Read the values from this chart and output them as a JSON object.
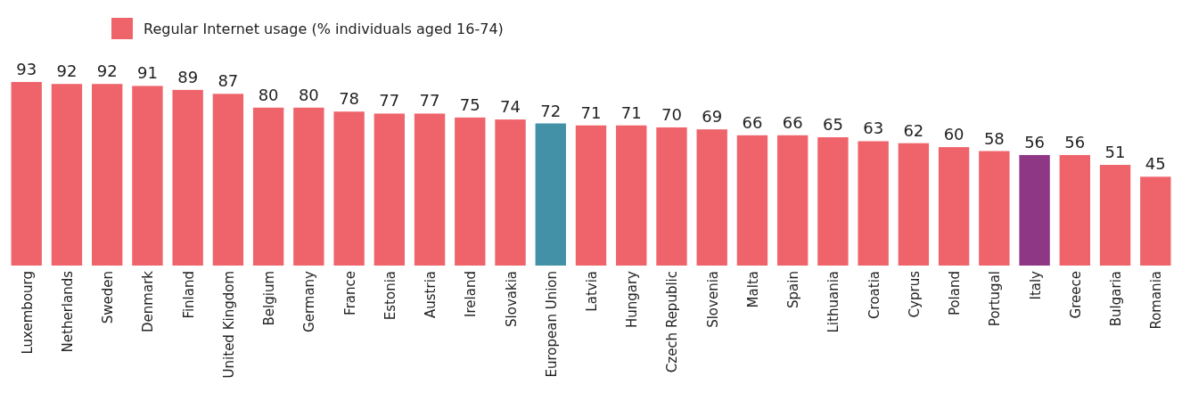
{
  "chart_data": {
    "type": "bar",
    "legend": "top left",
    "data_labels": true,
    "categories": [
      "Luxembourg",
      "Netherlands",
      "Sweden",
      "Denmark",
      "Finland",
      "United Kingdom",
      "Belgium",
      "Germany",
      "France",
      "Estonia",
      "Austria",
      "Ireland",
      "Slovakia",
      "European Union",
      "Latvia",
      "Hungary",
      "Czech Republic",
      "Slovenia",
      "Malta",
      "Spain",
      "Lithuania",
      "Croatia",
      "Cyprus",
      "Poland",
      "Portugal",
      "Italy",
      "Greece",
      "Bulgaria",
      "Romania"
    ],
    "series": [
      {
        "name": "Regular Internet usage (% individuals aged 16-74)",
        "color": "#ef646b",
        "values": [
          93,
          92,
          92,
          91,
          89,
          87,
          80,
          80,
          78,
          77,
          77,
          75,
          74,
          72,
          71,
          71,
          70,
          69,
          66,
          66,
          65,
          63,
          62,
          60,
          58,
          56,
          56,
          51,
          45
        ],
        "colors": [
          "#ef646b",
          "#ef646b",
          "#ef646b",
          "#ef646b",
          "#ef646b",
          "#ef646b",
          "#ef646b",
          "#ef646b",
          "#ef646b",
          "#ef646b",
          "#ef646b",
          "#ef646b",
          "#ef646b",
          "#4391a6",
          "#ef646b",
          "#ef646b",
          "#ef646b",
          "#ef646b",
          "#ef646b",
          "#ef646b",
          "#ef646b",
          "#ef646b",
          "#ef646b",
          "#ef646b",
          "#ef646b",
          "#8e3785",
          "#ef646b",
          "#ef646b",
          "#ef646b"
        ]
      }
    ]
  }
}
